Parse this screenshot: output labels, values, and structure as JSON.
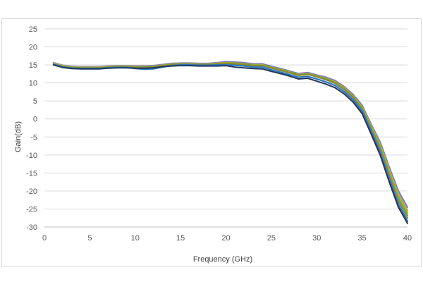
{
  "chart_data": {
    "type": "line",
    "title": "",
    "xlabel": "Frequency (GHz)",
    "ylabel": "Gain(dB)",
    "xlim": [
      0,
      40
    ],
    "ylim": [
      -30,
      25
    ],
    "x_ticks": [
      0,
      5,
      10,
      15,
      20,
      25,
      30,
      35,
      40
    ],
    "y_ticks": [
      25,
      20,
      15,
      10,
      5,
      0,
      -5,
      -10,
      -15,
      -20,
      -25,
      -30
    ],
    "grid": "horizontal",
    "legend": "none",
    "x": [
      1,
      2,
      3,
      4,
      5,
      6,
      7,
      8,
      9,
      10,
      11,
      12,
      13,
      14,
      15,
      16,
      17,
      18,
      19,
      20,
      21,
      22,
      23,
      24,
      25,
      26,
      27,
      28,
      29,
      30,
      31,
      32,
      33,
      34,
      35,
      36,
      37,
      38,
      39,
      40
    ],
    "series": [
      {
        "color": "#7f7fb8",
        "values": [
          15.6,
          14.9,
          14.6,
          14.5,
          14.5,
          14.5,
          14.7,
          14.8,
          14.8,
          14.7,
          14.7,
          14.8,
          15.1,
          15.4,
          15.5,
          15.5,
          15.4,
          15.4,
          15.6,
          15.9,
          15.8,
          15.6,
          15.3,
          15.3,
          14.6,
          14.0,
          13.3,
          12.6,
          12.9,
          12.2,
          11.6,
          10.7,
          9.0,
          6.8,
          3.8,
          -1.5,
          -6.5,
          -13.5,
          -20.0,
          -24.5
        ]
      },
      {
        "color": "#a6a6a6",
        "values": [
          15.5,
          14.8,
          14.5,
          14.4,
          14.4,
          14.4,
          14.6,
          14.7,
          14.7,
          14.5,
          14.0,
          14.1,
          14.7,
          15.2,
          15.3,
          15.3,
          15.2,
          15.2,
          15.4,
          15.6,
          15.5,
          15.3,
          15.0,
          15.0,
          14.3,
          13.7,
          13.0,
          12.3,
          12.6,
          11.9,
          11.2,
          10.3,
          8.6,
          6.3,
          3.3,
          -2.0,
          -7.2,
          -14.3,
          -20.8,
          -25.3
        ]
      },
      {
        "color": "#bfa524",
        "values": [
          15.4,
          14.7,
          14.4,
          14.3,
          14.3,
          14.3,
          14.5,
          14.6,
          14.6,
          14.5,
          14.5,
          14.6,
          14.9,
          15.2,
          15.3,
          15.3,
          15.2,
          15.2,
          15.4,
          15.6,
          15.5,
          15.3,
          15.0,
          15.0,
          14.3,
          13.7,
          13.0,
          12.3,
          12.6,
          11.9,
          11.2,
          10.3,
          8.6,
          6.3,
          3.2,
          -2.2,
          -7.6,
          -14.8,
          -21.5,
          -26.0
        ]
      },
      {
        "color": "#70ad47",
        "values": [
          15.3,
          14.6,
          14.3,
          14.2,
          14.2,
          14.2,
          14.4,
          14.5,
          14.5,
          14.4,
          14.4,
          14.5,
          14.8,
          15.1,
          15.2,
          15.2,
          15.1,
          15.1,
          15.3,
          15.5,
          15.4,
          15.2,
          14.9,
          14.9,
          14.2,
          13.6,
          12.9,
          12.2,
          12.5,
          11.8,
          11.1,
          10.1,
          8.4,
          6.1,
          3.0,
          -2.5,
          -8.0,
          -15.3,
          -22.1,
          -26.7
        ]
      },
      {
        "color": "#8a8a2e",
        "values": [
          15.2,
          14.5,
          14.2,
          14.1,
          14.1,
          14.1,
          14.3,
          14.4,
          14.4,
          14.3,
          14.3,
          14.4,
          14.7,
          15.0,
          15.1,
          15.1,
          15.0,
          15.0,
          15.2,
          15.4,
          15.3,
          15.1,
          14.8,
          14.8,
          14.1,
          13.5,
          12.8,
          12.1,
          12.4,
          11.7,
          10.9,
          9.9,
          8.2,
          5.9,
          2.7,
          -2.9,
          -8.5,
          -15.9,
          -22.8,
          -27.5
        ]
      },
      {
        "color": "#2e75b6",
        "values": [
          15.1,
          14.4,
          14.1,
          14.0,
          14.0,
          14.0,
          14.2,
          14.3,
          14.3,
          14.0,
          13.8,
          13.9,
          14.4,
          14.8,
          15.0,
          15.0,
          14.9,
          14.9,
          15.0,
          15.0,
          14.9,
          14.7,
          14.4,
          14.4,
          13.6,
          13.0,
          12.3,
          11.6,
          11.8,
          11.1,
          10.3,
          9.3,
          7.6,
          5.3,
          2.1,
          -3.6,
          -9.4,
          -16.9,
          -23.8,
          -28.4
        ]
      },
      {
        "color": "#1f3864",
        "values": [
          15.0,
          14.3,
          14.0,
          13.9,
          13.9,
          13.9,
          14.1,
          14.2,
          14.2,
          14.1,
          14.1,
          14.2,
          14.5,
          14.7,
          14.8,
          14.8,
          14.7,
          14.7,
          14.7,
          14.8,
          14.4,
          14.2,
          14.0,
          13.9,
          13.2,
          12.6,
          11.9,
          11.1,
          11.3,
          10.5,
          9.7,
          8.7,
          7.0,
          4.7,
          1.5,
          -4.2,
          -10.1,
          -17.6,
          -24.5,
          -29.0
        ]
      }
    ]
  }
}
